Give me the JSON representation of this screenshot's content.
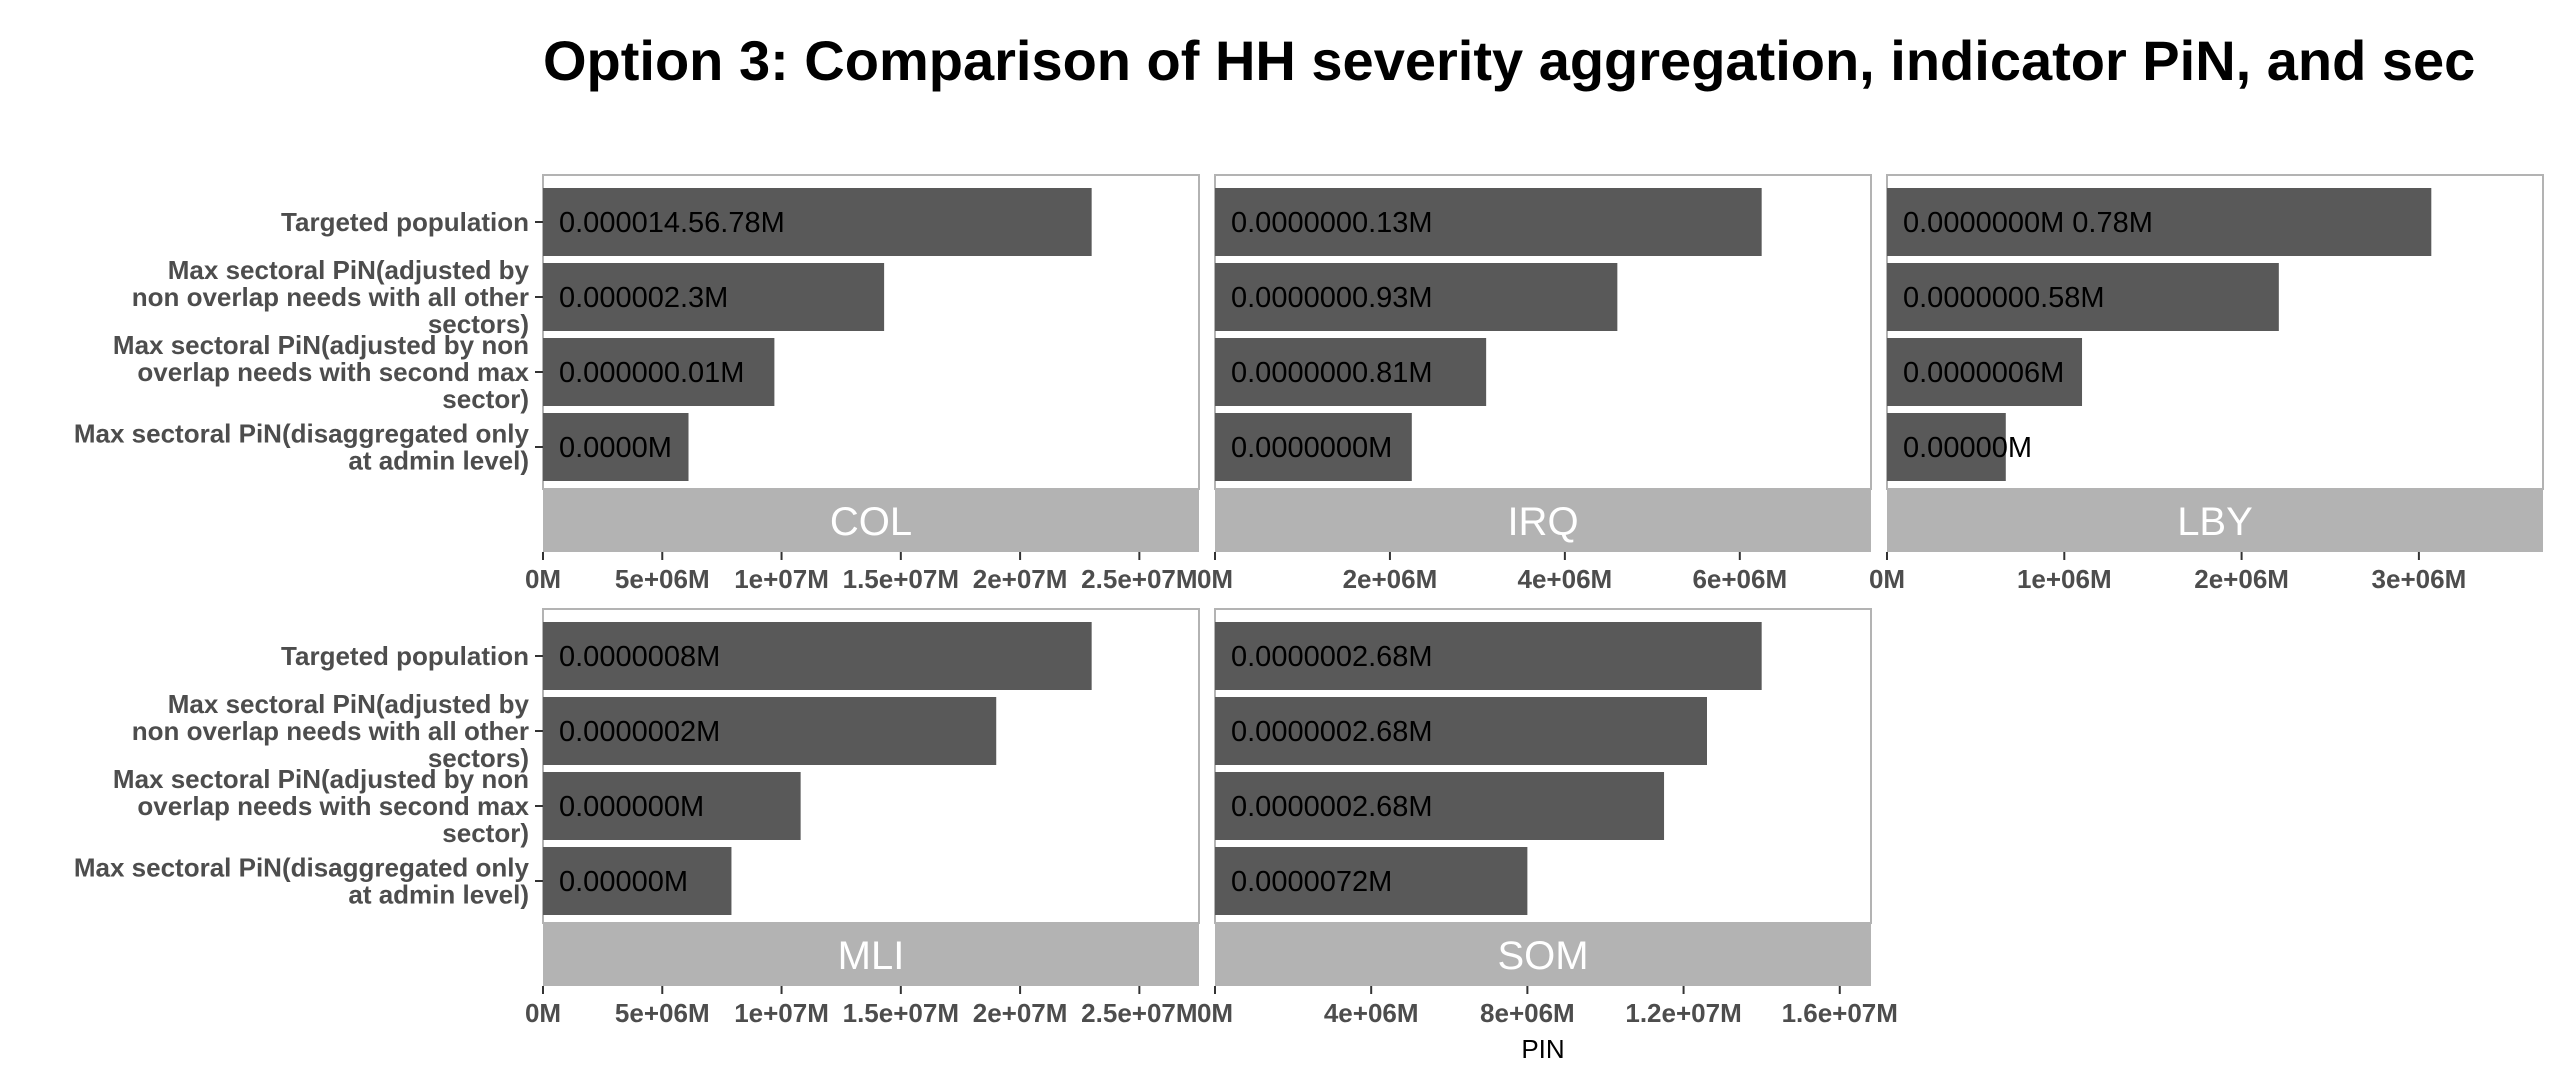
{
  "chart_data": {
    "type": "bar",
    "orientation": "horizontal",
    "title": "Option 3: Comparison of HH severity aggregation, indicator PiN, and sec",
    "xlabel": "PIN",
    "ylabel": "",
    "categories": [
      "Targeted population",
      "Max sectoral PiN(adjusted by non overlap needs with all other sectors)",
      "Max sectoral PiN(adjusted by non overlap needs with second max sector)",
      "Max sectoral PiN(disaggregated only at admin level)"
    ],
    "category_lines": [
      [
        "Targeted population"
      ],
      [
        "Max sectoral PiN(adjusted by",
        "non overlap needs with all other",
        "sectors)"
      ],
      [
        "Max sectoral PiN(adjusted by non",
        "overlap needs with second max",
        "sector)"
      ],
      [
        "Max sectoral PiN(disaggregated only",
        "at admin level)"
      ]
    ],
    "panels": [
      {
        "name": "COL",
        "xlim": [
          0,
          27500000
        ],
        "ticks": [
          0,
          5000000,
          10000000,
          15000000,
          20000000,
          25000000
        ],
        "tick_labels": [
          "0M",
          "5e+06M",
          "1e+07M",
          "1.5e+07M",
          "2e+07M",
          "2.5e+07M"
        ],
        "values": [
          23000000,
          14300000,
          9700000,
          6100000
        ],
        "data_labels": [
          "0.000014.56.78M",
          "0.000002.3M",
          "0.000000.01M",
          "0.0000M"
        ]
      },
      {
        "name": "IRQ",
        "xlim": [
          0,
          7500000
        ],
        "ticks": [
          0,
          2000000,
          4000000,
          6000000
        ],
        "tick_labels": [
          "0M",
          "2e+06M",
          "4e+06M",
          "6e+06M"
        ],
        "values": [
          6250000,
          4600000,
          3100000,
          2250000
        ],
        "data_labels": [
          "0.0000000.13M",
          "0.0000000.93M",
          "0.0000000.81M",
          "0.0000000M"
        ]
      },
      {
        "name": "LBY",
        "xlim": [
          0,
          3700000
        ],
        "ticks": [
          0,
          1000000,
          2000000,
          3000000
        ],
        "tick_labels": [
          "0M",
          "1e+06M",
          "2e+06M",
          "3e+06M"
        ],
        "values": [
          3070000,
          2210000,
          1100000,
          670000
        ],
        "data_labels": [
          "0.0000000M 0.78M",
          "0.0000000.58M",
          "0.0000006M",
          "0.00000M"
        ]
      },
      {
        "name": "MLI",
        "xlim": [
          0,
          27500000
        ],
        "ticks": [
          0,
          5000000,
          10000000,
          15000000,
          20000000,
          25000000
        ],
        "tick_labels": [
          "0M",
          "5e+06M",
          "1e+07M",
          "1.5e+07M",
          "2e+07M",
          "2.5e+07M"
        ],
        "values": [
          23000000,
          19000000,
          10800000,
          7900000
        ],
        "data_labels": [
          "0.0000008M",
          "0.0000002M",
          "0.000000M",
          "0.00000M"
        ]
      },
      {
        "name": "SOM",
        "xlim": [
          0,
          16800000
        ],
        "ticks": [
          0,
          4000000,
          8000000,
          12000000,
          16000000
        ],
        "tick_labels": [
          "0M",
          "4e+06M",
          "8e+06M",
          "1.2e+07M",
          "1.6e+07M"
        ],
        "values": [
          14000000,
          12600000,
          11500000,
          8000000
        ],
        "data_labels": [
          "0.0000002.68M",
          "0.0000002.68M",
          "0.0000002.68M",
          "0.0000072M"
        ]
      }
    ],
    "colors": {
      "bar": "#595959",
      "strip": "#b3b3b3",
      "strip_text": "#ffffff",
      "panel_border": "#b3b3b3",
      "axis_text": "#4d4d4d"
    },
    "grid": false,
    "legend": "none"
  }
}
